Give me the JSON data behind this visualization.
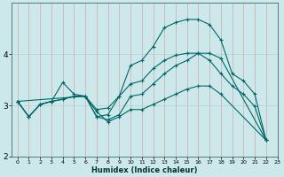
{
  "title": "",
  "xlabel": "Humidex (Indice chaleur)",
  "background_color": "#cce8ea",
  "grid_color": "#aacccc",
  "line_color": "#006868",
  "xlim": [
    -0.5,
    23
  ],
  "ylim": [
    2.0,
    5.0
  ],
  "yticks": [
    2,
    3,
    4
  ],
  "xticks": [
    0,
    1,
    2,
    3,
    4,
    5,
    6,
    7,
    8,
    9,
    10,
    11,
    12,
    13,
    14,
    15,
    16,
    17,
    18,
    19,
    20,
    21,
    22,
    23
  ],
  "line1_x": [
    0,
    1,
    2,
    3,
    4,
    5,
    6,
    7,
    8,
    9,
    10,
    11,
    12,
    13,
    14,
    15,
    16,
    17,
    18,
    19,
    20,
    21,
    22
  ],
  "line1_y": [
    3.08,
    2.78,
    3.02,
    3.08,
    3.45,
    3.22,
    3.18,
    2.78,
    2.82,
    3.18,
    3.78,
    3.88,
    4.15,
    4.52,
    4.62,
    4.68,
    4.68,
    4.58,
    4.28,
    3.62,
    3.48,
    3.22,
    2.32
  ],
  "line2_x": [
    0,
    1,
    2,
    3,
    4,
    5,
    6,
    7,
    8,
    9,
    10,
    11,
    12,
    13,
    14,
    15,
    16,
    17,
    18,
    19,
    20,
    21,
    22
  ],
  "line2_y": [
    3.08,
    2.78,
    3.02,
    3.08,
    3.12,
    3.18,
    3.18,
    2.92,
    2.95,
    3.18,
    3.42,
    3.48,
    3.72,
    3.88,
    3.98,
    4.02,
    4.02,
    3.88,
    3.62,
    3.38,
    3.22,
    2.98,
    2.32
  ],
  "line3_x": [
    0,
    6,
    7,
    8,
    9,
    10,
    11,
    12,
    13,
    14,
    15,
    16,
    17,
    18,
    22
  ],
  "line3_y": [
    3.08,
    3.18,
    2.78,
    2.72,
    2.82,
    3.18,
    3.22,
    3.42,
    3.62,
    3.78,
    3.88,
    4.02,
    4.02,
    3.92,
    2.32
  ],
  "line4_x": [
    0,
    1,
    2,
    3,
    4,
    5,
    6,
    7,
    8,
    9,
    10,
    11,
    12,
    13,
    14,
    15,
    16,
    17,
    18,
    22
  ],
  "line4_y": [
    3.08,
    2.78,
    3.02,
    3.08,
    3.12,
    3.18,
    3.18,
    2.88,
    2.68,
    2.78,
    2.92,
    2.92,
    3.02,
    3.12,
    3.22,
    3.32,
    3.38,
    3.38,
    3.22,
    2.32
  ]
}
